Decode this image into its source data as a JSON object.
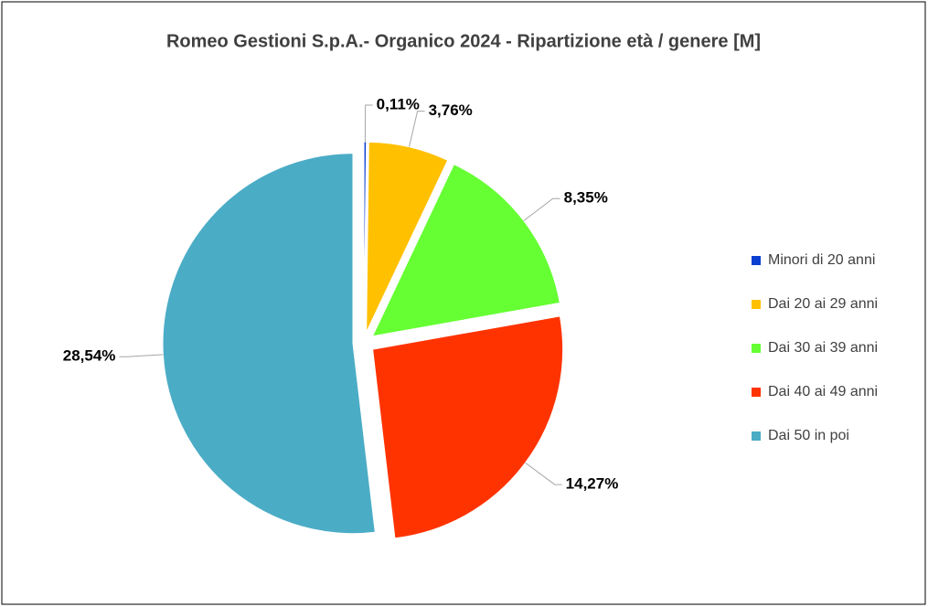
{
  "chart_data": {
    "type": "pie",
    "title": "Romeo Gestioni S.p.A.- Organico 2024 - Ripartizione età / genere [M]",
    "categories": [
      "Minori di 20 anni",
      "Dai 20 ai 29 anni",
      "Dai 30 ai 39 anni",
      "Dai 40 ai 49 anni",
      "Dai 50 in poi"
    ],
    "values": [
      0.11,
      3.76,
      8.35,
      14.27,
      28.54
    ],
    "value_labels": [
      "0,11%",
      "3,76%",
      "8,35%",
      "14,27%",
      "28,54%"
    ],
    "colors": [
      "#0b3fd1",
      "#ffc000",
      "#66ff33",
      "#ff3300",
      "#4bacc6"
    ],
    "legend": "right"
  }
}
